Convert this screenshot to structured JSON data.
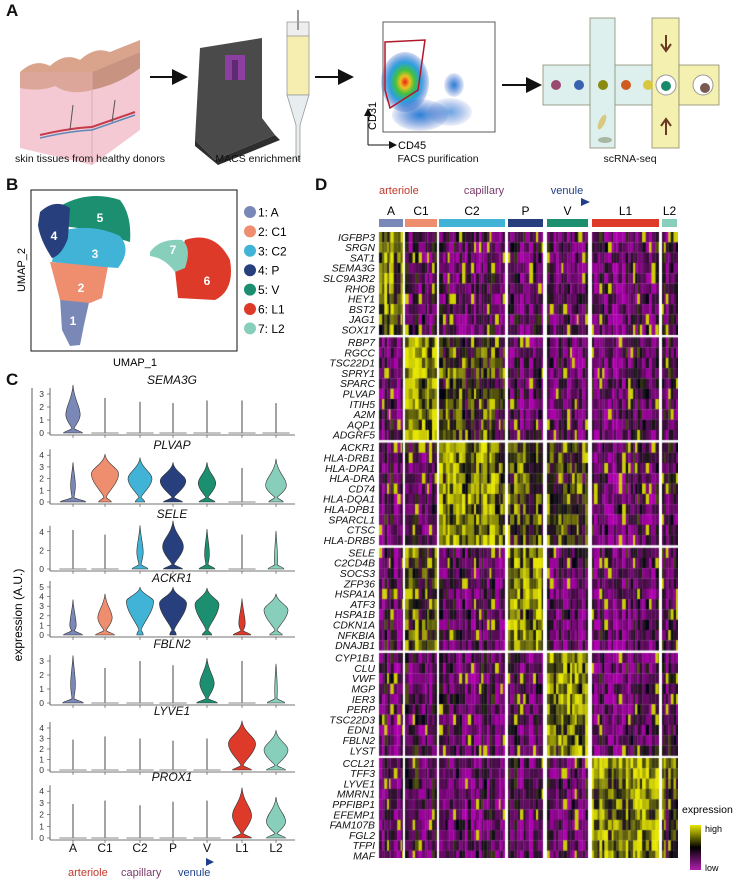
{
  "panels": {
    "A": {
      "label": "A",
      "steps": [
        {
          "caption": "skin tissues from healthy donors",
          "icon": "skin-tissue-icon"
        },
        {
          "caption": "MACS enrichment",
          "icon": "macs-column-icon"
        },
        {
          "caption": "FACS purification",
          "icon": "facs-plot-icon"
        },
        {
          "caption": "scRNA-seq",
          "icon": "droplet-chip-icon"
        }
      ],
      "facs": {
        "y_axis": "CD31",
        "x_axis": "CD45"
      }
    },
    "B": {
      "label": "B",
      "xlabel": "UMAP_1",
      "ylabel": "UMAP_2",
      "clusters": [
        {
          "num": "1",
          "legend": "1: A",
          "color": "#7a88b8"
        },
        {
          "num": "2",
          "legend": "2: C1",
          "color": "#ef8d6f"
        },
        {
          "num": "3",
          "legend": "3: C2",
          "color": "#40b3d6"
        },
        {
          "num": "4",
          "legend": "4: P",
          "color": "#283f7e"
        },
        {
          "num": "5",
          "legend": "5: V",
          "color": "#1b8f6f"
        },
        {
          "num": "6",
          "legend": "6: L1",
          "color": "#dd3a2a"
        },
        {
          "num": "7",
          "legend": "7: L2",
          "color": "#88cfbb"
        }
      ]
    },
    "C": {
      "label": "C",
      "ylabel": "expression (A.U.)",
      "gradient": {
        "arteriole": "arteriole",
        "capillary": "capillary",
        "venule": "venule",
        "arteriole_color": "#c0392b",
        "capillary_color": "#7a3a6a",
        "venule_color": "#1f3f8a"
      }
    },
    "D": {
      "label": "D",
      "gradient": {
        "arteriole": "arteriole",
        "capillary": "capillary",
        "venule": "venule"
      },
      "clusters": [
        "A",
        "C1",
        "C2",
        "P",
        "V",
        "L1",
        "L2"
      ],
      "gene_blocks": [
        {
          "enriched": [
            "A"
          ],
          "genes": [
            "IGFBP3",
            "SRGN",
            "SAT1",
            "SEMA3G",
            "SLC9A3R2",
            "RHOB",
            "HEY1",
            "BST2",
            "JAG1",
            "SOX17"
          ]
        },
        {
          "enriched": [
            "C1",
            "C2"
          ],
          "genes": [
            "RBP7",
            "RGCC",
            "TSC22D1",
            "SPRY1",
            "SPARC",
            "PLVAP",
            "ITIH5",
            "A2M",
            "AQP1",
            "ADGRF5"
          ]
        },
        {
          "enriched": [
            "C2",
            "P",
            "V"
          ],
          "genes": [
            "ACKR1",
            "HLA-DRB1",
            "HLA-DPA1",
            "HLA-DRA",
            "CD74",
            "HLA-DQA1",
            "HLA-DPB1",
            "SPARCL1",
            "CTSC",
            "HLA-DRB5"
          ]
        },
        {
          "enriched": [
            "P",
            "C1"
          ],
          "genes": [
            "SELE",
            "C2CD4B",
            "SOCS3",
            "ZFP36",
            "HSPA1A",
            "ATF3",
            "HSPA1B",
            "CDKN1A",
            "NFKBIA",
            "DNAJB1"
          ]
        },
        {
          "enriched": [
            "V"
          ],
          "genes": [
            "CYP1B1",
            "CLU",
            "VWF",
            "MGP",
            "IER3",
            "PERP",
            "TSC22D3",
            "EDN1",
            "FBLN2",
            "LYST"
          ]
        },
        {
          "enriched": [
            "L1",
            "L2"
          ],
          "genes": [
            "CCL21",
            "TFF3",
            "LYVE1",
            "MMRN1",
            "PPFIBP1",
            "EFEMP1",
            "FAM107B",
            "FGL2",
            "TFPI",
            "MAF"
          ]
        }
      ],
      "legend": {
        "title": "expression",
        "high": "high",
        "low": "low",
        "high_color": "#e6e600",
        "mid_color": "#000000",
        "low_color": "#b020b0"
      }
    }
  },
  "chart_data": {
    "type": "violin",
    "categories": [
      "A",
      "C1",
      "C2",
      "P",
      "V",
      "L1",
      "L2"
    ],
    "ylabel": "expression (A.U.)",
    "genes": [
      {
        "name": "SEMA3G",
        "ticks": [
          0,
          1,
          2,
          3
        ],
        "mode": [
          1.4,
          0,
          0,
          0,
          0,
          0,
          0
        ],
        "max": [
          3.7,
          2.7,
          2.4,
          2.3,
          2.5,
          2.5,
          2.3
        ],
        "density": [
          0.45,
          0,
          0,
          0,
          0,
          0,
          0
        ],
        "zero": [
          0.6,
          0.85,
          0.85,
          0.85,
          0.85,
          0.85,
          0.85
        ]
      },
      {
        "name": "PLVAP",
        "ticks": [
          0,
          1,
          2,
          3,
          4
        ],
        "mode": [
          1.4,
          2.4,
          2.0,
          1.8,
          1.6,
          0,
          1.4
        ],
        "max": [
          3.4,
          4.1,
          3.8,
          3.4,
          3.4,
          2.9,
          3.7
        ],
        "density": [
          0.15,
          0.85,
          0.75,
          0.8,
          0.55,
          0,
          0.65
        ],
        "zero": [
          0.8,
          0.4,
          0.3,
          0.6,
          0.5,
          0.85,
          0.45
        ]
      },
      {
        "name": "SELE",
        "ticks": [
          0,
          2,
          4
        ],
        "mode": [
          0,
          0,
          1.8,
          2.4,
          1.6,
          0,
          0.9
        ],
        "max": [
          4.2,
          3.7,
          4.7,
          5.2,
          4.3,
          3.7,
          4.1
        ],
        "density": [
          0,
          0,
          0.2,
          0.65,
          0.15,
          0,
          0.1
        ],
        "zero": [
          0.85,
          0.85,
          0.5,
          0.6,
          0.5,
          0.85,
          0.5
        ]
      },
      {
        "name": "ACKR1",
        "ticks": [
          0,
          1,
          2,
          3,
          4,
          5
        ],
        "mode": [
          1.0,
          1.8,
          3.5,
          3.3,
          3.2,
          1.2,
          2.6
        ],
        "max": [
          3.7,
          4.3,
          5.0,
          5.0,
          4.9,
          3.8,
          4.3
        ],
        "density": [
          0.2,
          0.45,
          0.85,
          0.85,
          0.75,
          0.2,
          0.75
        ],
        "zero": [
          0.6,
          0.6,
          0.2,
          0.2,
          0.3,
          0.55,
          0.4
        ]
      },
      {
        "name": "FBLN2",
        "ticks": [
          0,
          1,
          2,
          3
        ],
        "mode": [
          1.3,
          0,
          0,
          0,
          1.4,
          0,
          0.9
        ],
        "max": [
          3.4,
          2.5,
          3.0,
          2.7,
          3.2,
          3.0,
          2.8
        ],
        "density": [
          0.15,
          0,
          0,
          0,
          0.45,
          0,
          0.08
        ],
        "zero": [
          0.65,
          0.85,
          0.85,
          0.85,
          0.65,
          0.85,
          0.55
        ]
      },
      {
        "name": "LYVE1",
        "ticks": [
          0,
          1,
          2,
          3,
          4
        ],
        "mode": [
          0,
          0,
          0,
          0,
          0,
          2.5,
          1.9
        ],
        "max": [
          2.9,
          3.2,
          3.0,
          2.8,
          3.0,
          4.7,
          3.8
        ],
        "density": [
          0,
          0,
          0,
          0,
          0,
          0.85,
          0.75
        ],
        "zero": [
          0.85,
          0.85,
          0.85,
          0.85,
          0.85,
          0.6,
          0.6
        ]
      },
      {
        "name": "PROX1",
        "ticks": [
          0,
          1,
          2,
          3,
          4
        ],
        "mode": [
          0,
          0,
          0,
          0,
          0,
          1.9,
          1.4
        ],
        "max": [
          2.9,
          3.2,
          2.8,
          3.1,
          3.2,
          4.3,
          3.5
        ],
        "density": [
          0,
          0,
          0,
          0,
          0,
          0.6,
          0.6
        ],
        "zero": [
          0.85,
          0.85,
          0.85,
          0.85,
          0.85,
          0.6,
          0.6
        ]
      }
    ]
  }
}
